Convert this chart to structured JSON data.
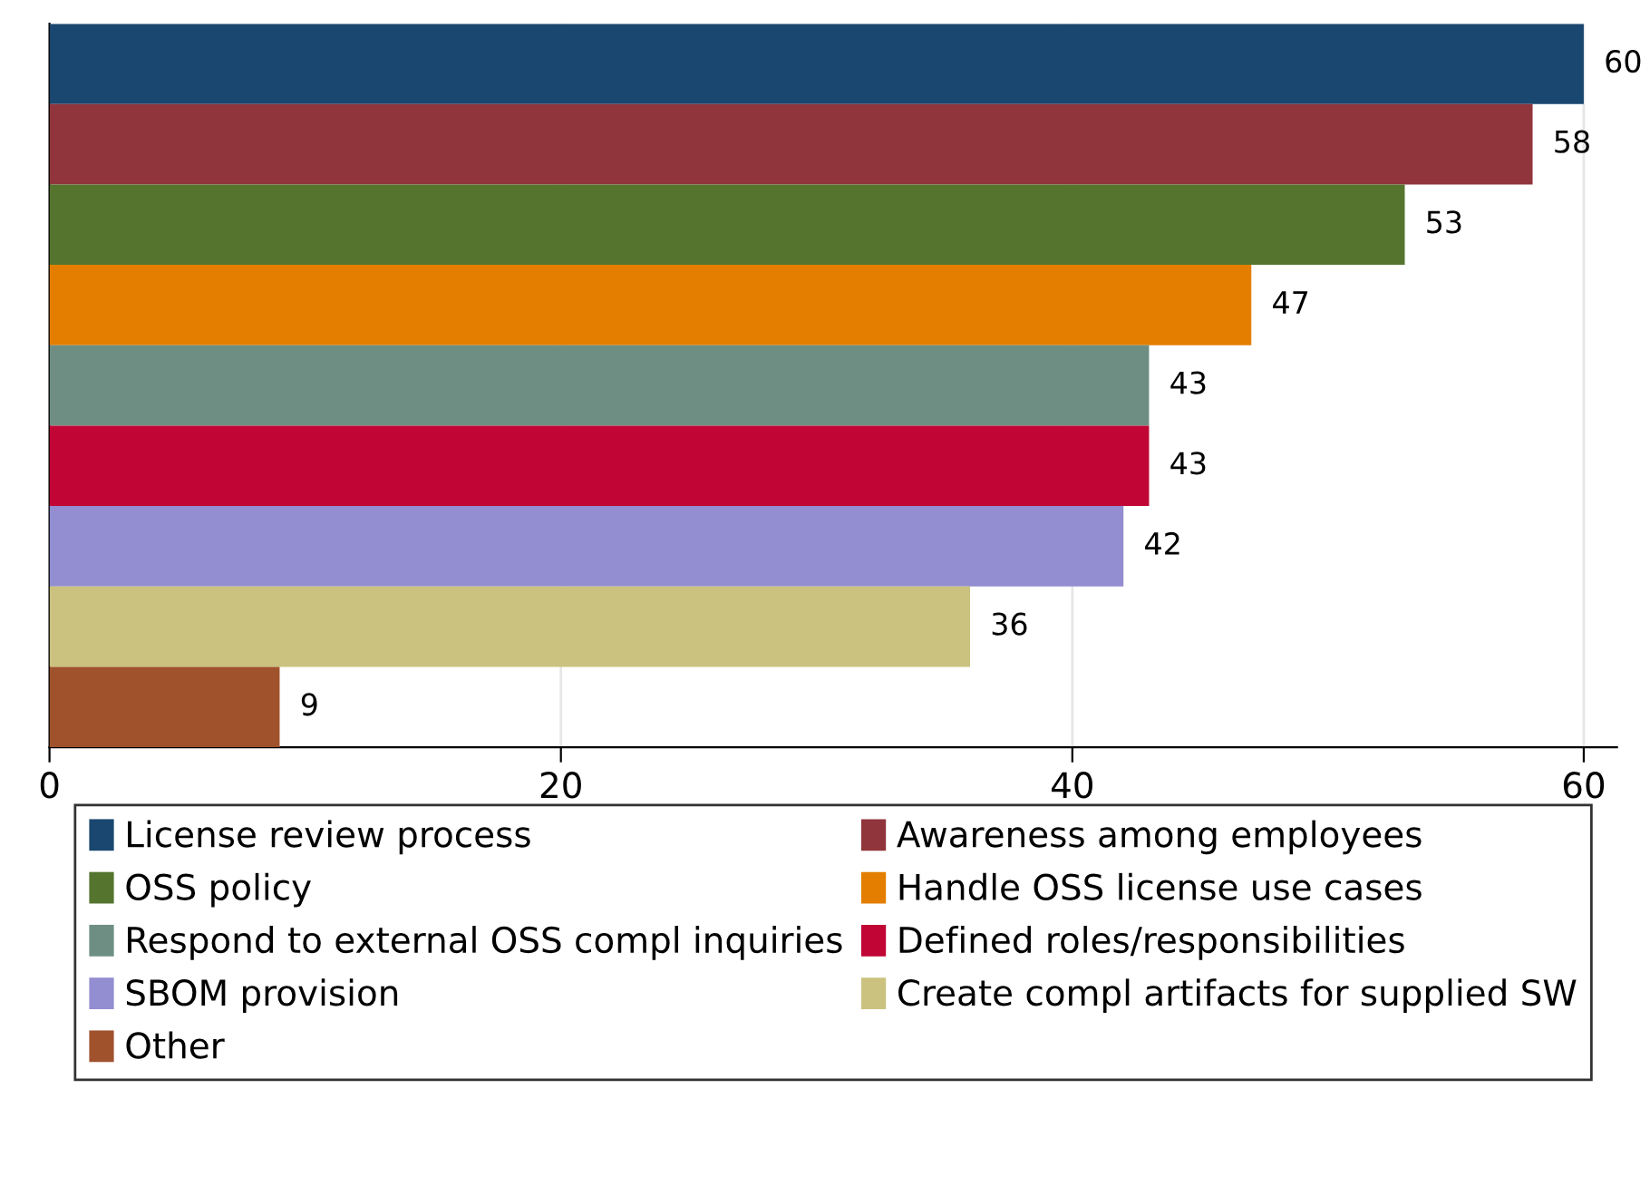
{
  "chart_data": {
    "type": "bar",
    "orientation": "horizontal",
    "categories": [
      null,
      null,
      null,
      null,
      null,
      null,
      null,
      null,
      null
    ],
    "series": [
      {
        "name": "License review process",
        "color": "#1a476f",
        "values": [
          60,
          null,
          null,
          null,
          null,
          null,
          null,
          null,
          null
        ]
      },
      {
        "name": "Awareness among employees",
        "color": "#90353b",
        "values": [
          null,
          58,
          null,
          null,
          null,
          null,
          null,
          null,
          null
        ]
      },
      {
        "name": "OSS policy",
        "color": "#55752f",
        "values": [
          null,
          null,
          53,
          null,
          null,
          null,
          null,
          null,
          null
        ]
      },
      {
        "name": "Handle OSS license use cases",
        "color": "#e37e00",
        "values": [
          null,
          null,
          null,
          47,
          null,
          null,
          null,
          null,
          null
        ]
      },
      {
        "name": "Respond to external OSS compl inquiries",
        "color": "#6e8e84",
        "values": [
          null,
          null,
          null,
          null,
          43,
          null,
          null,
          null,
          null
        ]
      },
      {
        "name": "Defined roles/responsibilities",
        "color": "#c10534",
        "values": [
          null,
          null,
          null,
          null,
          null,
          43,
          null,
          null,
          null
        ]
      },
      {
        "name": "SBOM provision",
        "color": "#938dd2",
        "values": [
          null,
          null,
          null,
          null,
          null,
          null,
          42,
          null,
          null
        ]
      },
      {
        "name": "Create compl artifacts for supplied SW",
        "color": "#cac27e",
        "values": [
          null,
          null,
          null,
          null,
          null,
          null,
          null,
          36,
          null
        ]
      },
      {
        "name": "Other",
        "color": "#a0522d",
        "values": [
          null,
          null,
          null,
          null,
          null,
          null,
          null,
          null,
          9
        ]
      }
    ],
    "xlim": [
      0,
      61.3
    ],
    "xticks": [
      0,
      20,
      40,
      60
    ],
    "grid": "x",
    "legend": "bottom",
    "data_labels": true,
    "tick_labels": "x"
  }
}
